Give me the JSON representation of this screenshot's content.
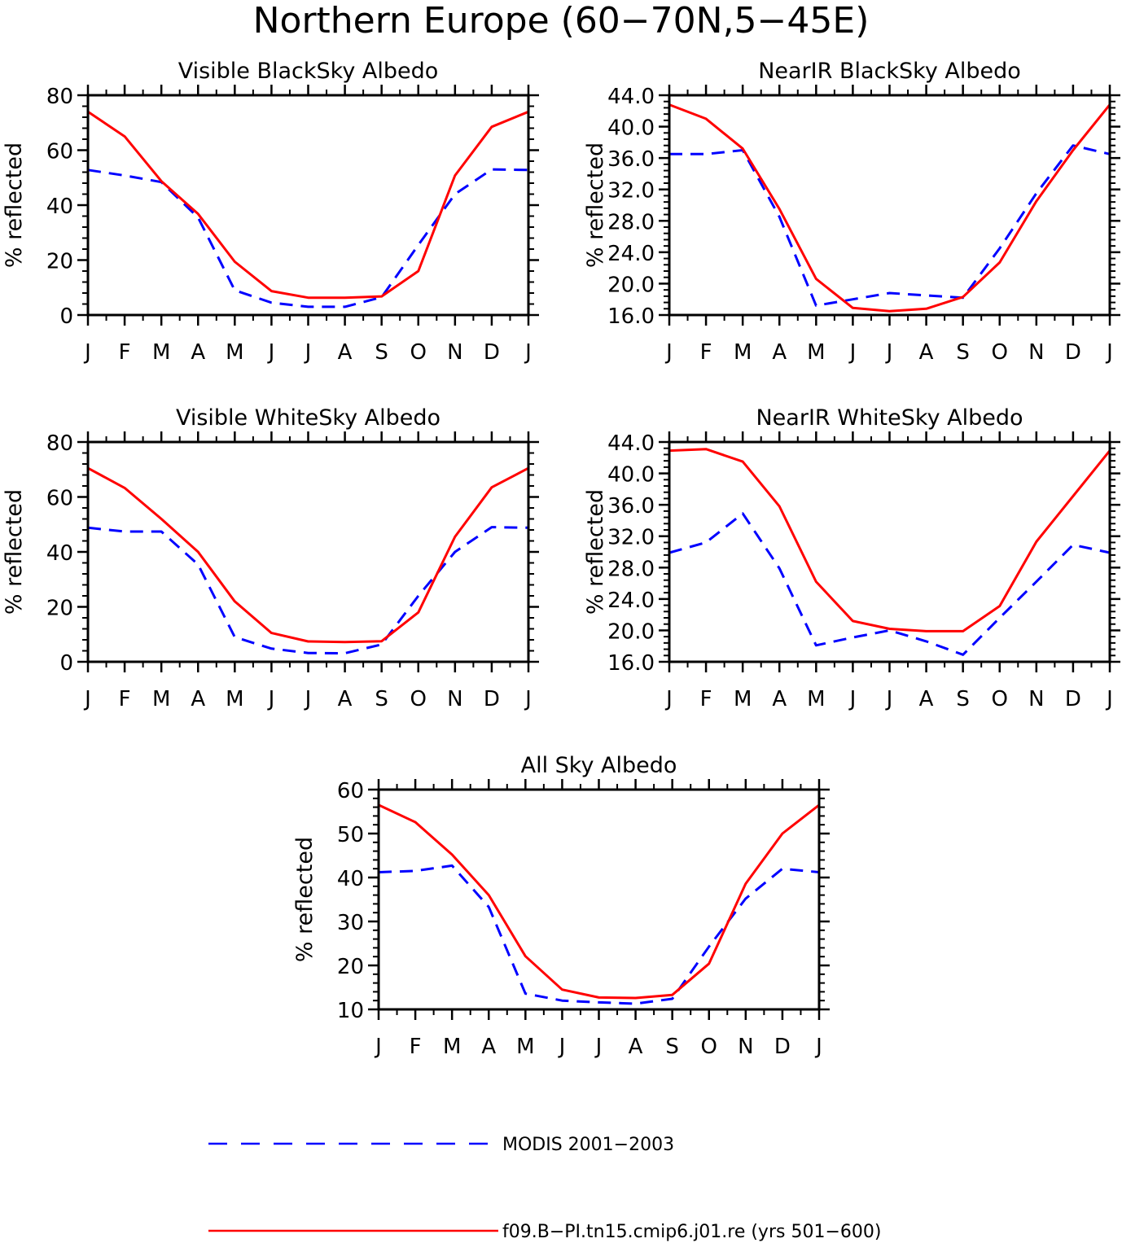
{
  "figure": {
    "title": "Northern Europe (60−70N,5−45E)"
  },
  "legend": [
    {
      "label": "MODIS 2001−2003",
      "color": "#0000ff",
      "style": "dashed"
    },
    {
      "label": "f09.B−PI.tn15.cmip6.j01.re (yrs 501−600)",
      "color": "#ff0000",
      "style": "solid"
    }
  ],
  "chart_data": [
    {
      "type": "line",
      "title": "Visible BlackSky Albedo",
      "ylabel": "% reflected",
      "ylim": [
        0,
        80
      ],
      "yticks": [
        0,
        20,
        40,
        60,
        80
      ],
      "ytick_labels": [
        "0",
        "20",
        "40",
        "60",
        "80"
      ],
      "categories": [
        "J",
        "F",
        "M",
        "A",
        "M",
        "J",
        "J",
        "A",
        "S",
        "O",
        "N",
        "D",
        "J"
      ],
      "series": [
        {
          "name": "MODIS 2001−2003",
          "color": "#0000ff",
          "style": "dashed",
          "values": [
            52.8,
            50.8,
            48.4,
            35.5,
            9.0,
            4.5,
            3.0,
            3.0,
            6.5,
            25.5,
            44.0,
            53.0,
            52.8
          ]
        },
        {
          "name": "f09.B−PI.tn15.cmip6.j01.re (yrs 501−600)",
          "color": "#ff0000",
          "style": "solid",
          "values": [
            74.0,
            65.0,
            48.7,
            36.8,
            19.4,
            8.7,
            6.3,
            6.3,
            6.8,
            16.0,
            50.8,
            68.5,
            74.0
          ]
        }
      ]
    },
    {
      "type": "line",
      "title": "NearIR BlackSky Albedo",
      "ylabel": "% reflected",
      "ylim": [
        16.0,
        44.0
      ],
      "yticks": [
        16,
        20,
        24,
        28,
        32,
        36,
        40,
        44
      ],
      "ytick_labels": [
        "16.0",
        "20.0",
        "24.0",
        "28.0",
        "32.0",
        "36.0",
        "40.0",
        "44.0"
      ],
      "categories": [
        "J",
        "F",
        "M",
        "A",
        "M",
        "J",
        "J",
        "A",
        "S",
        "O",
        "N",
        "D",
        "J"
      ],
      "series": [
        {
          "name": "MODIS 2001−2003",
          "color": "#0000ff",
          "style": "dashed",
          "values": [
            36.5,
            36.5,
            37.0,
            28.5,
            17.2,
            18.0,
            18.8,
            18.5,
            18.2,
            24.5,
            31.5,
            37.6,
            36.5
          ]
        },
        {
          "name": "f09.B−PI.tn15.cmip6.j01.re (yrs 501−600)",
          "color": "#ff0000",
          "style": "solid",
          "values": [
            42.8,
            41.0,
            37.2,
            29.5,
            20.6,
            16.9,
            16.5,
            16.8,
            18.3,
            22.7,
            30.5,
            37.0,
            42.8
          ]
        }
      ]
    },
    {
      "type": "line",
      "title": "Visible WhiteSky Albedo",
      "ylabel": "% reflected",
      "ylim": [
        0,
        80
      ],
      "yticks": [
        0,
        20,
        40,
        60,
        80
      ],
      "ytick_labels": [
        "0",
        "20",
        "40",
        "60",
        "80"
      ],
      "categories": [
        "J",
        "F",
        "M",
        "A",
        "M",
        "J",
        "J",
        "A",
        "S",
        "O",
        "N",
        "D",
        "J"
      ],
      "series": [
        {
          "name": "MODIS 2001−2003",
          "color": "#0000ff",
          "style": "dashed",
          "values": [
            48.8,
            47.4,
            47.4,
            35.4,
            9.0,
            4.8,
            3.2,
            3.1,
            6.3,
            24.0,
            40.0,
            49.0,
            48.8
          ]
        },
        {
          "name": "f09.B−PI.tn15.cmip6.j01.re (yrs 501−600)",
          "color": "#ff0000",
          "style": "solid",
          "values": [
            70.5,
            63.3,
            52.0,
            40.0,
            22.0,
            10.5,
            7.4,
            7.2,
            7.5,
            18.0,
            45.5,
            63.5,
            70.5
          ]
        }
      ]
    },
    {
      "type": "line",
      "title": "NearIR WhiteSky Albedo",
      "ylabel": "% reflected",
      "ylim": [
        16.0,
        44.0
      ],
      "yticks": [
        16,
        20,
        24,
        28,
        32,
        36,
        40,
        44
      ],
      "ytick_labels": [
        "16.0",
        "20.0",
        "24.0",
        "28.0",
        "32.0",
        "36.0",
        "40.0",
        "44.0"
      ],
      "categories": [
        "J",
        "F",
        "M",
        "A",
        "M",
        "J",
        "J",
        "A",
        "S",
        "O",
        "N",
        "D",
        "J"
      ],
      "series": [
        {
          "name": "MODIS 2001−2003",
          "color": "#0000ff",
          "style": "dashed",
          "values": [
            29.9,
            31.2,
            34.9,
            27.9,
            18.1,
            19.1,
            20.0,
            18.6,
            16.9,
            21.6,
            26.2,
            30.9,
            29.9
          ]
        },
        {
          "name": "f09.B−PI.tn15.cmip6.j01.re (yrs 501−600)",
          "color": "#ff0000",
          "style": "solid",
          "values": [
            42.9,
            43.1,
            41.5,
            35.8,
            26.2,
            21.2,
            20.2,
            19.9,
            19.9,
            23.1,
            31.3,
            37.1,
            42.9
          ]
        }
      ]
    },
    {
      "type": "line",
      "title": "All Sky Albedo",
      "ylabel": "% reflected",
      "ylim": [
        10,
        60
      ],
      "yticks": [
        10,
        20,
        30,
        40,
        50,
        60
      ],
      "ytick_labels": [
        "10",
        "20",
        "30",
        "40",
        "50",
        "60"
      ],
      "categories": [
        "J",
        "F",
        "M",
        "A",
        "M",
        "J",
        "J",
        "A",
        "S",
        "O",
        "N",
        "D",
        "J"
      ],
      "series": [
        {
          "name": "MODIS 2001−2003",
          "color": "#0000ff",
          "style": "dashed",
          "values": [
            41.2,
            41.5,
            42.7,
            33.3,
            13.6,
            12.0,
            11.6,
            11.3,
            12.4,
            24.3,
            35.2,
            42.0,
            41.2
          ]
        },
        {
          "name": "f09.B−PI.tn15.cmip6.j01.re (yrs 501−600)",
          "color": "#ff0000",
          "style": "solid",
          "values": [
            56.5,
            52.6,
            45.2,
            36.0,
            22.1,
            14.5,
            12.7,
            12.6,
            13.3,
            20.4,
            38.6,
            50.0,
            56.5
          ]
        }
      ]
    }
  ]
}
